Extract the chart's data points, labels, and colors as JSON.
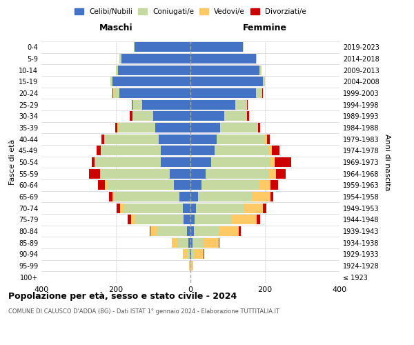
{
  "age_groups": [
    "100+",
    "95-99",
    "90-94",
    "85-89",
    "80-84",
    "75-79",
    "70-74",
    "65-69",
    "60-64",
    "55-59",
    "50-54",
    "45-49",
    "40-44",
    "35-39",
    "30-34",
    "25-29",
    "20-24",
    "15-19",
    "10-14",
    "5-9",
    "0-4"
  ],
  "birth_years": [
    "≤ 1923",
    "1924-1928",
    "1929-1933",
    "1934-1938",
    "1939-1943",
    "1944-1948",
    "1949-1953",
    "1954-1958",
    "1959-1963",
    "1964-1968",
    "1969-1973",
    "1974-1978",
    "1979-1983",
    "1984-1988",
    "1989-1993",
    "1994-1998",
    "1999-2003",
    "2004-2008",
    "2009-2013",
    "2014-2018",
    "2019-2023"
  ],
  "maschi": {
    "celibi": [
      0,
      0,
      2,
      5,
      10,
      18,
      20,
      30,
      45,
      55,
      80,
      80,
      85,
      95,
      100,
      130,
      190,
      210,
      195,
      185,
      150
    ],
    "coniugati": [
      0,
      2,
      8,
      30,
      80,
      130,
      160,
      175,
      180,
      185,
      175,
      160,
      145,
      100,
      55,
      25,
      15,
      5,
      5,
      5,
      2
    ],
    "vedovi": [
      0,
      2,
      10,
      15,
      18,
      12,
      8,
      5,
      4,
      2,
      2,
      1,
      1,
      1,
      0,
      1,
      2,
      0,
      0,
      0,
      0
    ],
    "divorziati": [
      0,
      0,
      0,
      0,
      2,
      8,
      10,
      8,
      20,
      30,
      8,
      10,
      8,
      5,
      8,
      2,
      2,
      0,
      0,
      0,
      0
    ]
  },
  "femmine": {
    "nubili": [
      0,
      0,
      2,
      5,
      10,
      12,
      15,
      20,
      30,
      40,
      55,
      65,
      70,
      80,
      90,
      120,
      175,
      195,
      185,
      175,
      140
    ],
    "coniugate": [
      0,
      2,
      8,
      30,
      65,
      100,
      130,
      145,
      155,
      170,
      160,
      145,
      130,
      100,
      60,
      30,
      15,
      5,
      5,
      2,
      2
    ],
    "vedove": [
      0,
      5,
      25,
      40,
      55,
      65,
      50,
      50,
      30,
      20,
      10,
      8,
      5,
      2,
      2,
      2,
      2,
      0,
      0,
      0,
      0
    ],
    "divorziate": [
      0,
      0,
      2,
      3,
      5,
      10,
      8,
      8,
      20,
      25,
      45,
      20,
      8,
      5,
      5,
      2,
      2,
      0,
      0,
      0,
      0
    ]
  },
  "colors": {
    "celibi": "#4472c4",
    "coniugati": "#c6d9a0",
    "vedovi": "#ffc966",
    "divorziati": "#cc0000"
  },
  "title": "Popolazione per età, sesso e stato civile - 2024",
  "subtitle": "COMUNE DI CALUSCO D'ADDA (BG) - Dati ISTAT 1° gennaio 2024 - Elaborazione TUTTITALIA.IT",
  "xlabel_maschi": "Maschi",
  "xlabel_femmine": "Femmine",
  "ylabel_left": "Fasce di età",
  "ylabel_right": "Anni di nascita",
  "xlim": 400,
  "legend_labels": [
    "Celibi/Nubili",
    "Coniugati/e",
    "Vedovi/e",
    "Divorziati/e"
  ]
}
